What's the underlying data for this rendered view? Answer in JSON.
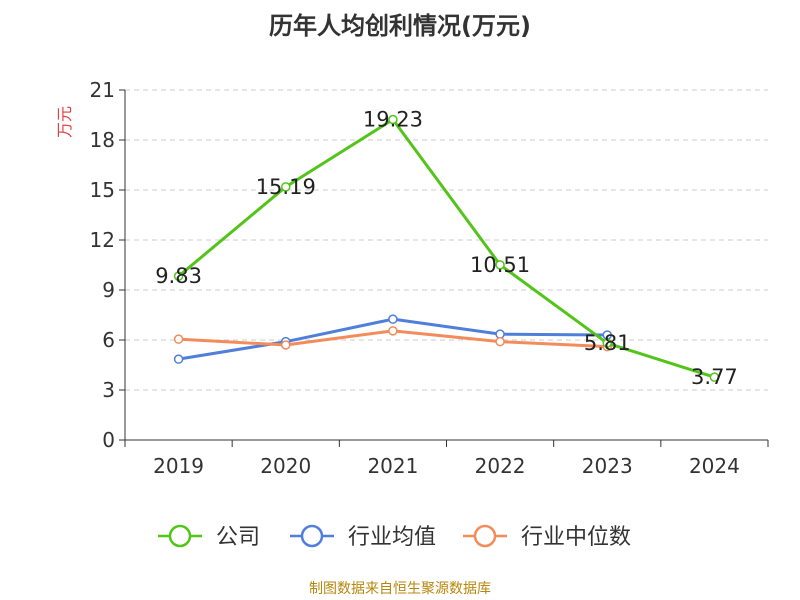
{
  "chart_data": {
    "type": "line",
    "title": "历年人均创利情况(万元)",
    "ylabel": "万元",
    "xlabel": "",
    "categories": [
      "2019",
      "2020",
      "2021",
      "2022",
      "2023",
      "2024"
    ],
    "ylim": [
      0,
      21
    ],
    "yticks": [
      0,
      3,
      6,
      9,
      12,
      15,
      18,
      21
    ],
    "grid": true,
    "legend_position": "bottom",
    "series": [
      {
        "name": "公司",
        "color": "#52c41a",
        "values": [
          9.83,
          15.19,
          19.23,
          10.51,
          5.81,
          3.77
        ],
        "labels": [
          "9.83",
          "15.19",
          "19.23",
          "10.51",
          "5.81",
          "3.77"
        ]
      },
      {
        "name": "行业均值",
        "color": "#4f7fdb",
        "values": [
          4.85,
          5.9,
          7.25,
          6.35,
          6.3,
          null
        ]
      },
      {
        "name": "行业中位数",
        "color": "#f28c5a",
        "values": [
          6.05,
          5.7,
          6.55,
          5.9,
          5.6,
          null
        ]
      }
    ]
  },
  "source": "制图数据来自恒生聚源数据库"
}
